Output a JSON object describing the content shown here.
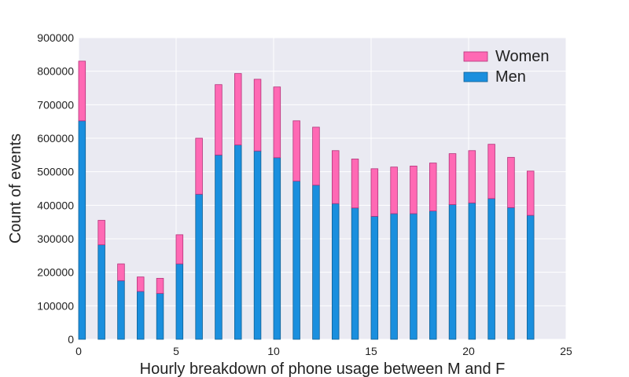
{
  "chart_data": {
    "type": "bar",
    "stacked": true,
    "xlabel": "Hourly breakdown of phone usage between M and F",
    "ylabel": "Count of events",
    "xlim": [
      0,
      25
    ],
    "ylim": [
      0,
      900000
    ],
    "xticks": [
      0,
      5,
      10,
      15,
      20,
      25
    ],
    "yticks": [
      0,
      100000,
      200000,
      300000,
      400000,
      500000,
      600000,
      700000,
      800000,
      900000
    ],
    "grid": true,
    "legend_position": "top-right",
    "x": [
      0,
      1,
      2,
      3,
      4,
      5,
      6,
      7,
      8,
      9,
      10,
      11,
      12,
      13,
      14,
      15,
      16,
      17,
      18,
      19,
      20,
      21,
      22,
      23
    ],
    "series": [
      {
        "name": "Men",
        "color": "#1a8fde",
        "values": [
          652000,
          282000,
          175000,
          143000,
          137000,
          225000,
          433000,
          550000,
          580000,
          562000,
          542000,
          472000,
          460000,
          405000,
          392000,
          367000,
          375000,
          375000,
          383000,
          402000,
          407000,
          420000,
          393000,
          370000
        ]
      },
      {
        "name": "Women",
        "color": "#ff69b4",
        "values": [
          178000,
          73000,
          50000,
          43000,
          45000,
          87000,
          167000,
          210000,
          213000,
          214000,
          211000,
          180000,
          173000,
          158000,
          146000,
          142000,
          139000,
          142000,
          143000,
          152000,
          156000,
          162000,
          150000,
          132000
        ]
      }
    ],
    "legend_order": [
      "Women",
      "Men"
    ]
  }
}
